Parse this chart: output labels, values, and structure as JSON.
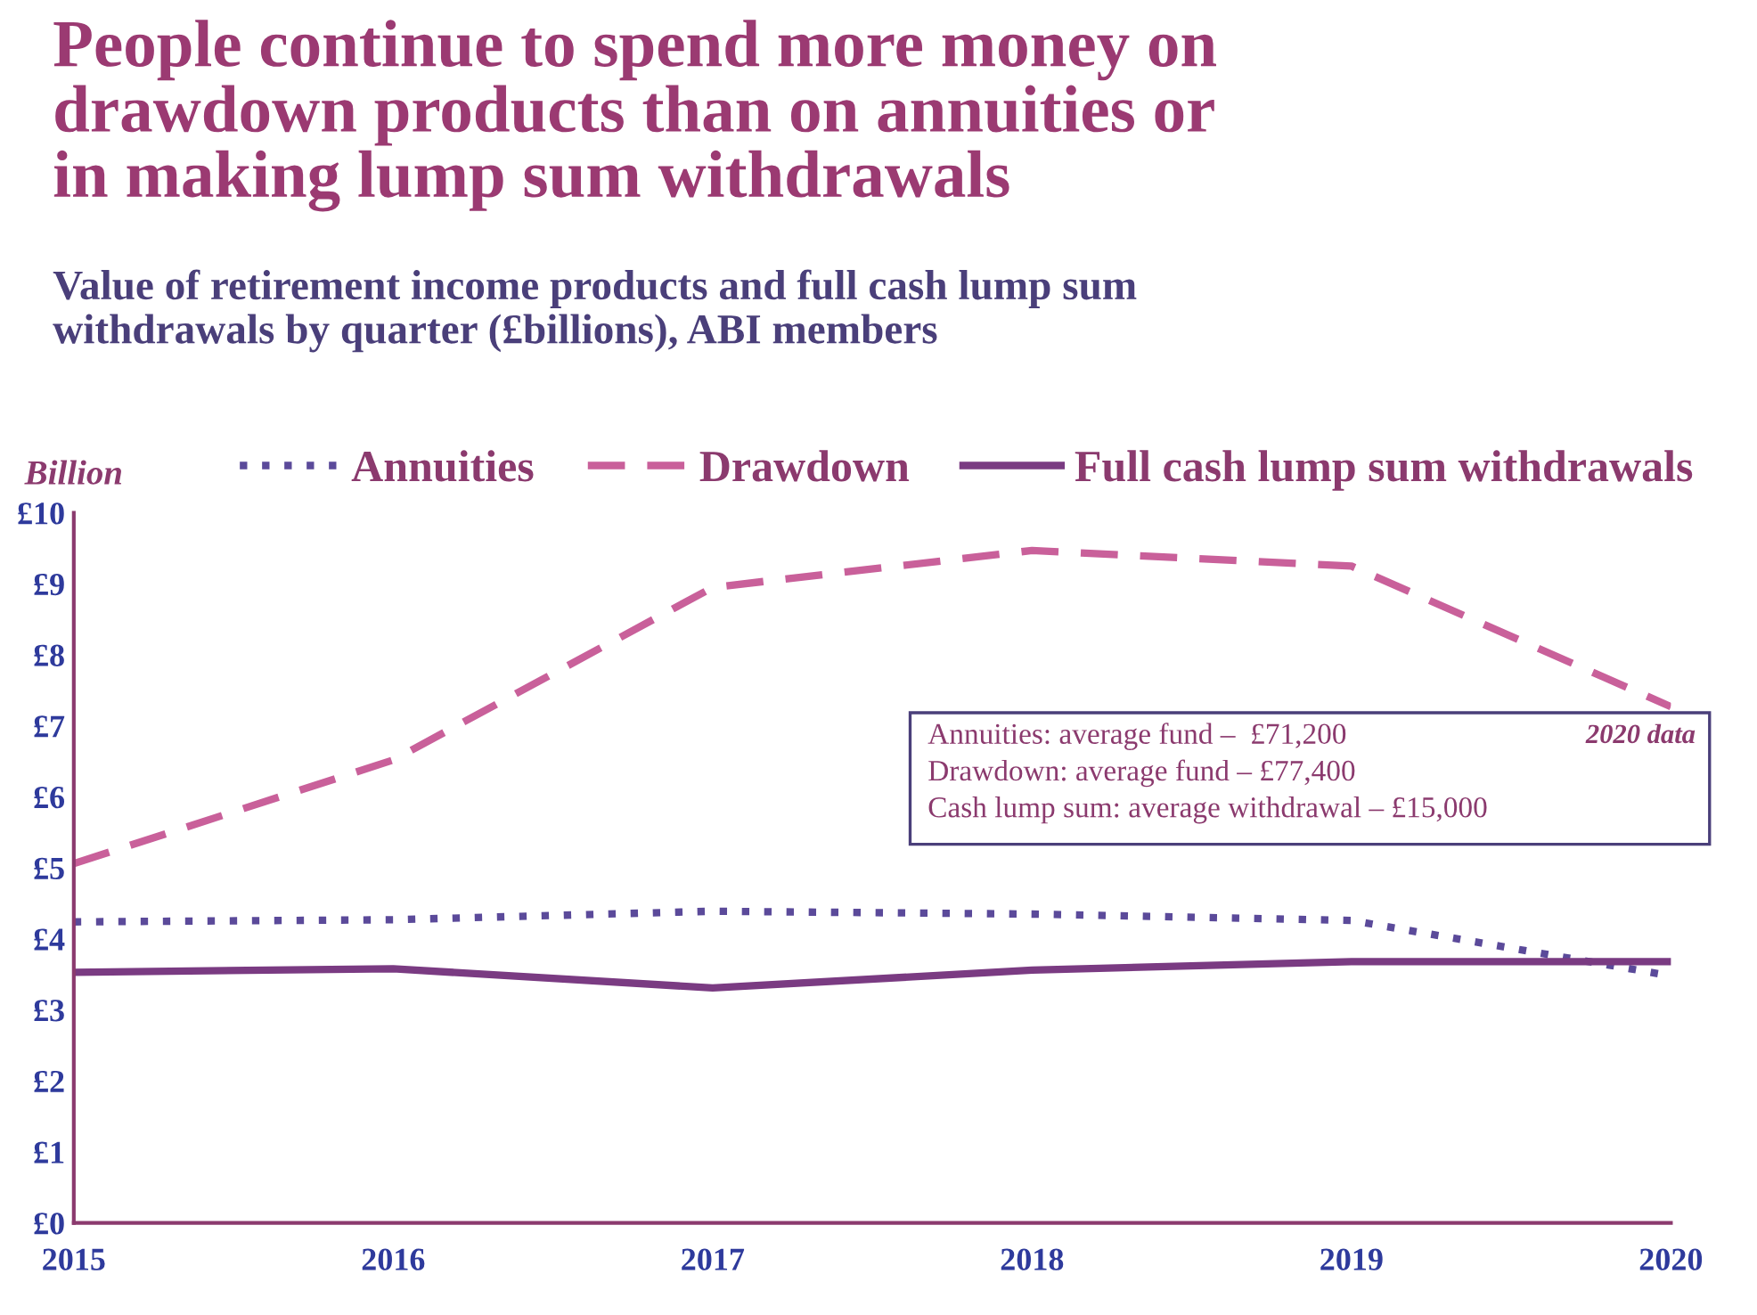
{
  "chart_data": {
    "type": "line",
    "title": "People continue to spend more money on\ndrawdown products than on annuities or\nin making lump sum withdrawals",
    "subtitle": "Value of retirement income products and full cash lump sum\nwithdrawals by quarter (£billions), ABI members",
    "ylabel": "Billion",
    "x": [
      2015,
      2016,
      2017,
      2018,
      2019,
      2020
    ],
    "series": [
      {
        "name": "Annuities",
        "color": "#5b4a9a",
        "line_style": "dotted",
        "values": [
          4.24,
          4.27,
          4.39,
          4.35,
          4.26,
          3.48
        ]
      },
      {
        "name": "Drawdown",
        "color": "#c9609a",
        "line_style": "dashed",
        "values": [
          5.06,
          6.52,
          8.95,
          9.47,
          9.25,
          7.27
        ]
      },
      {
        "name": "Full cash lump sum withdrawals",
        "color": "#7a3b82",
        "line_style": "solid",
        "values": [
          3.53,
          3.58,
          3.31,
          3.56,
          3.68,
          3.68
        ]
      }
    ],
    "xlim": [
      2015,
      2020
    ],
    "xticks": [
      2015,
      2016,
      2017,
      2018,
      2019,
      2020
    ],
    "ylim": [
      0,
      10
    ],
    "yticks": [
      {
        "value": 0,
        "label": "£0"
      },
      {
        "value": 1,
        "label": "£1"
      },
      {
        "value": 2,
        "label": "£2"
      },
      {
        "value": 3,
        "label": "£3"
      },
      {
        "value": 4,
        "label": "£4"
      },
      {
        "value": 5,
        "label": "£5"
      },
      {
        "value": 6,
        "label": "£6"
      },
      {
        "value": 7,
        "label": "£7"
      },
      {
        "value": 8,
        "label": "£8"
      },
      {
        "value": 9,
        "label": "£9"
      },
      {
        "value": 10,
        "label": "£10"
      }
    ],
    "annotations": [
      "Annuities: average fund –  £71,200",
      "Drawdown: average fund – £77,400",
      "Cash lump sum: average withdrawal – £15,000",
      "2020 data"
    ],
    "legend": "top",
    "grid": false,
    "marker": "none"
  }
}
